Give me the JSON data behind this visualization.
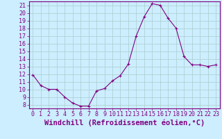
{
  "x": [
    0,
    1,
    2,
    3,
    4,
    5,
    6,
    7,
    8,
    9,
    10,
    11,
    12,
    13,
    14,
    15,
    16,
    17,
    18,
    19,
    20,
    21,
    22,
    23
  ],
  "y": [
    11.9,
    10.5,
    10.0,
    10.0,
    9.0,
    8.2,
    7.8,
    7.8,
    9.8,
    10.1,
    11.1,
    11.8,
    13.3,
    17.0,
    19.5,
    21.2,
    21.0,
    19.3,
    18.0,
    14.3,
    13.2,
    13.2,
    13.0,
    13.2
  ],
  "line_color": "#800080",
  "marker": "+",
  "bg_color": "#cceeff",
  "grid_color": "#aacccc",
  "spine_color": "#800080",
  "xlabel": "Windchill (Refroidissement éolien,°C)",
  "xlim": [
    -0.5,
    23.5
  ],
  "ylim": [
    7.5,
    21.5
  ],
  "yticks": [
    8,
    9,
    10,
    11,
    12,
    13,
    14,
    15,
    16,
    17,
    18,
    19,
    20,
    21
  ],
  "xticks": [
    0,
    1,
    2,
    3,
    4,
    5,
    6,
    7,
    8,
    9,
    10,
    11,
    12,
    13,
    14,
    15,
    16,
    17,
    18,
    19,
    20,
    21,
    22,
    23
  ],
  "tick_color": "#800080",
  "label_color": "#800080",
  "font_size": 6,
  "xlabel_font_size": 7.5
}
